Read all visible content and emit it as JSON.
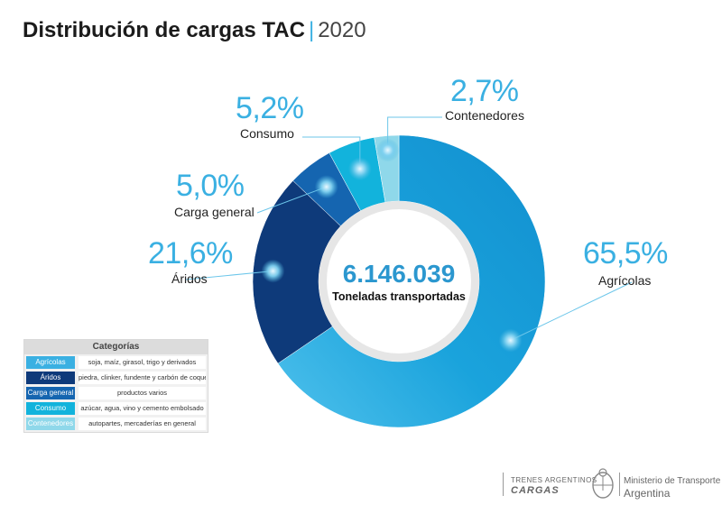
{
  "title": {
    "main": "Distribución de cargas TAC",
    "separator": "|",
    "year": "2020"
  },
  "chart_data": {
    "type": "pie",
    "title": "Distribución de cargas TAC 2020",
    "total_value": "6.146.039",
    "total_label": "Toneladas transportadas",
    "categories": [
      "Agrícolas",
      "Áridos",
      "Carga general",
      "Consumo",
      "Contenedores"
    ],
    "values": [
      65.5,
      21.6,
      5.0,
      5.2,
      2.7
    ],
    "value_labels": [
      "65,5%",
      "21,6%",
      "5,0%",
      "5,2%",
      "2,7%"
    ],
    "colors": [
      "#1a9fd6",
      "#0e3a7a",
      "#1565b0",
      "#12b3dc",
      "#8fd8ea"
    ],
    "highlight_color": "#4fc1ec"
  },
  "legend": {
    "title": "Categorías",
    "items": [
      {
        "name": "Agrícolas",
        "desc": "soja, maíz, girasol, trigo y derivados",
        "color": "#3ab0e2"
      },
      {
        "name": "Áridos",
        "desc": "piedra, clinker, fundente y carbón de coque",
        "color": "#0e3a7a"
      },
      {
        "name": "Carga general",
        "desc": "productos varios",
        "color": "#1565b0"
      },
      {
        "name": "Consumo",
        "desc": "azúcar, agua, vino y cemento embolsado",
        "color": "#12b3dc"
      },
      {
        "name": "Contenedores",
        "desc": "autopartes, mercaderías en general",
        "color": "#8fd8ea"
      }
    ]
  },
  "footer": {
    "trenes": "TRENES ARGENTINOS",
    "cargas": "CARGAS",
    "ministerio": "Ministerio de Transporte",
    "argentina": "Argentina"
  }
}
